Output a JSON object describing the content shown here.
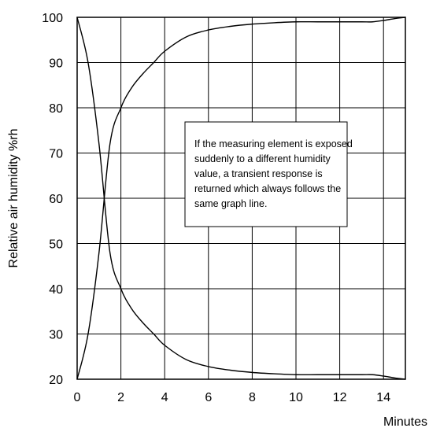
{
  "chart_data": {
    "type": "line",
    "title": "",
    "xlabel": "Minutes",
    "ylabel": "Relative air humidity %rh",
    "xlim": [
      0,
      15
    ],
    "ylim": [
      20,
      100
    ],
    "x_ticks": [
      "0",
      "2",
      "4",
      "6",
      "8",
      "10",
      "12",
      "14"
    ],
    "y_ticks": [
      "20",
      "30",
      "40",
      "50",
      "60",
      "70",
      "80",
      "90",
      "100"
    ],
    "grid": true,
    "legend": "none",
    "annotation": [
      "If the measuring element is exposed",
      "suddenly  to a different humidity",
      "value, a transient response is",
      "returned which always follows the",
      "same graph line."
    ],
    "series": [
      {
        "x": [
          0,
          0.5,
          1,
          1.5,
          2,
          2.5,
          3,
          3.5,
          4,
          5,
          6,
          7,
          8,
          9,
          10,
          11,
          12,
          13,
          13.5,
          14,
          14.5,
          15
        ],
        "y": [
          20,
          30,
          48,
          72,
          80,
          84.5,
          87.5,
          90,
          92.5,
          95.7,
          97.2,
          98,
          98.5,
          98.8,
          99,
          99,
          99,
          99,
          99,
          99.3,
          99.7,
          100
        ]
      },
      {
        "x": [
          0,
          0.5,
          1,
          1.5,
          2,
          2.5,
          3,
          3.5,
          4,
          5,
          6,
          7,
          8,
          9,
          10,
          11,
          12,
          13,
          13.5,
          14,
          14.5,
          15
        ],
        "y": [
          100,
          90,
          72,
          48,
          40,
          35.5,
          32.5,
          30,
          27.5,
          24.3,
          22.8,
          22,
          21.5,
          21.2,
          21,
          21,
          21,
          21,
          21,
          20.7,
          20.3,
          20
        ]
      }
    ]
  }
}
